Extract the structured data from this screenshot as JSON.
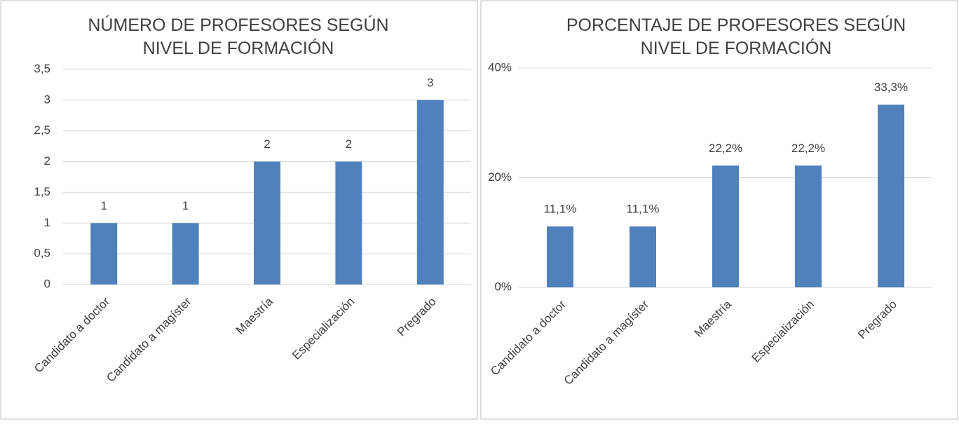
{
  "chart_data": [
    {
      "type": "bar",
      "title": "NÚMERO DE PROFESORES SEGÚN NIVEL DE FORMACIÓN",
      "categories": [
        "Candidato a doctor",
        "Candidato a magíster",
        "Maestría",
        "Especialización",
        "Pregrado"
      ],
      "values": [
        1,
        1,
        2,
        2,
        3
      ],
      "color": "#4f81bd",
      "ylim": [
        0,
        3.5
      ],
      "yticks": [
        0,
        {
          "value": 0.5,
          "label": "0,5"
        },
        1,
        {
          "value": 1.5,
          "label": "1,5"
        },
        2,
        {
          "value": 2.5,
          "label": "2,5"
        },
        3,
        {
          "value": 3.5,
          "label": "3,5"
        }
      ],
      "grid": true
    },
    {
      "type": "bar",
      "title": "PORCENTAJE DE PROFESORES SEGÚN NIVEL DE FORMACIÓN",
      "categories": [
        "Candidato a doctor",
        "Candidato a magíster",
        "Maestría",
        "Especialización",
        "Pregrado"
      ],
      "values": [
        11.1,
        11.1,
        22.2,
        22.2,
        33.3
      ],
      "value_labels": [
        "11,1%",
        "11,1%",
        "22,2%",
        "22,2%",
        "33,3%"
      ],
      "color": "#4f81bd",
      "ylim": [
        0,
        40
      ],
      "yticks": [
        {
          "value": 0,
          "label": "0%"
        },
        {
          "value": 20,
          "label": "20%"
        },
        {
          "value": 40,
          "label": "40%"
        }
      ],
      "grid": true
    }
  ]
}
